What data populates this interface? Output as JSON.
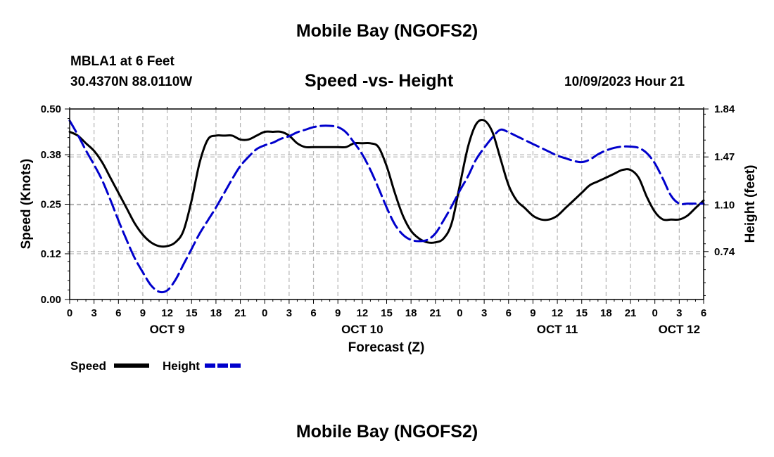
{
  "header": {
    "title": "Mobile Bay (NGOFS2)",
    "station": "MBLA1 at 6 Feet",
    "coords": "30.4370N  88.0110W",
    "subtitle": "Speed -vs- Height",
    "run_time": "10/09/2023 Hour 21"
  },
  "footer": {
    "title": "Mobile Bay (NGOFS2)"
  },
  "legend": [
    {
      "label": "Speed",
      "color": "#000000",
      "dash": "solid"
    },
    {
      "label": "Height",
      "color": "#0000cc",
      "dash": "dashed"
    }
  ],
  "chart_data": {
    "type": "line",
    "xlabel": "Forecast (Z)",
    "ylabel": "Speed (Knots)",
    "y2label": "Height (feet)",
    "x_hours_range": [
      0,
      78
    ],
    "x_tick_labels": [
      "0",
      "3",
      "6",
      "9",
      "12",
      "15",
      "18",
      "21",
      "0",
      "3",
      "6",
      "9",
      "12",
      "15",
      "18",
      "21",
      "0",
      "3",
      "6",
      "9",
      "12",
      "15",
      "18",
      "21",
      "0",
      "3",
      "6"
    ],
    "day_labels": [
      {
        "label": "OCT 9",
        "hour": 12
      },
      {
        "label": "OCT 10",
        "hour": 36
      },
      {
        "label": "OCT 11",
        "hour": 60
      },
      {
        "label": "OCT 12",
        "hour": 75
      }
    ],
    "ylim": [
      0,
      0.5
    ],
    "y_ticks": [
      "0.00",
      "0.12",
      "0.25",
      "0.38",
      "0.50"
    ],
    "y2lim": [
      0.37,
      1.84
    ],
    "y2_ticks": [
      "0.74",
      "1.10",
      "1.47",
      "1.84"
    ],
    "grid": true,
    "series": [
      {
        "name": "Speed",
        "axis": "left",
        "color": "#000000",
        "x": [
          0,
          1,
          2,
          3,
          4,
          5,
          6,
          7,
          8,
          9,
          10,
          11,
          12,
          13,
          14,
          15,
          16,
          17,
          18,
          19,
          20,
          21,
          22,
          23,
          24,
          25,
          26,
          27,
          28,
          29,
          30,
          31,
          32,
          33,
          34,
          35,
          36,
          37,
          38,
          39,
          40,
          41,
          42,
          43,
          44,
          45,
          46,
          47,
          48,
          49,
          50,
          51,
          52,
          53,
          54,
          55,
          56,
          57,
          58,
          59,
          60,
          61,
          62,
          63,
          64,
          65,
          66,
          67,
          68,
          69,
          70,
          71,
          72,
          73,
          74,
          75,
          76,
          77,
          78
        ],
        "values": [
          0.44,
          0.43,
          0.41,
          0.39,
          0.36,
          0.32,
          0.28,
          0.24,
          0.2,
          0.17,
          0.15,
          0.14,
          0.14,
          0.15,
          0.18,
          0.26,
          0.36,
          0.42,
          0.43,
          0.43,
          0.43,
          0.42,
          0.42,
          0.43,
          0.44,
          0.44,
          0.44,
          0.43,
          0.41,
          0.4,
          0.4,
          0.4,
          0.4,
          0.4,
          0.4,
          0.41,
          0.41,
          0.41,
          0.4,
          0.35,
          0.28,
          0.22,
          0.18,
          0.16,
          0.15,
          0.15,
          0.16,
          0.2,
          0.3,
          0.4,
          0.46,
          0.47,
          0.44,
          0.37,
          0.3,
          0.26,
          0.24,
          0.22,
          0.21,
          0.21,
          0.22,
          0.24,
          0.26,
          0.28,
          0.3,
          0.31,
          0.32,
          0.33,
          0.34,
          0.34,
          0.32,
          0.27,
          0.23,
          0.21,
          0.21,
          0.21,
          0.22,
          0.24,
          0.26
        ]
      },
      {
        "name": "Height",
        "axis": "right",
        "color": "#0000cc",
        "x": [
          0,
          1,
          2,
          3,
          4,
          5,
          6,
          7,
          8,
          9,
          10,
          11,
          12,
          13,
          14,
          15,
          16,
          17,
          18,
          19,
          20,
          21,
          22,
          23,
          24,
          25,
          26,
          27,
          28,
          29,
          30,
          31,
          32,
          33,
          34,
          35,
          36,
          37,
          38,
          39,
          40,
          41,
          42,
          43,
          44,
          45,
          46,
          47,
          48,
          49,
          50,
          51,
          52,
          53,
          54,
          55,
          56,
          57,
          58,
          59,
          60,
          61,
          62,
          63,
          64,
          65,
          66,
          67,
          68,
          69,
          70,
          71,
          72,
          73,
          74,
          75,
          76,
          77,
          78
        ],
        "values": [
          1.75,
          1.64,
          1.52,
          1.41,
          1.29,
          1.14,
          0.98,
          0.83,
          0.69,
          0.58,
          0.48,
          0.43,
          0.44,
          0.52,
          0.64,
          0.76,
          0.88,
          0.98,
          1.08,
          1.19,
          1.3,
          1.4,
          1.47,
          1.53,
          1.56,
          1.58,
          1.61,
          1.63,
          1.66,
          1.68,
          1.7,
          1.71,
          1.71,
          1.7,
          1.66,
          1.58,
          1.49,
          1.37,
          1.23,
          1.08,
          0.95,
          0.87,
          0.83,
          0.82,
          0.83,
          0.88,
          0.98,
          1.09,
          1.21,
          1.32,
          1.45,
          1.54,
          1.62,
          1.68,
          1.66,
          1.63,
          1.6,
          1.57,
          1.54,
          1.51,
          1.48,
          1.46,
          1.44,
          1.43,
          1.45,
          1.49,
          1.52,
          1.54,
          1.55,
          1.55,
          1.54,
          1.5,
          1.42,
          1.3,
          1.17,
          1.11,
          1.11,
          1.11,
          1.11
        ]
      }
    ]
  }
}
